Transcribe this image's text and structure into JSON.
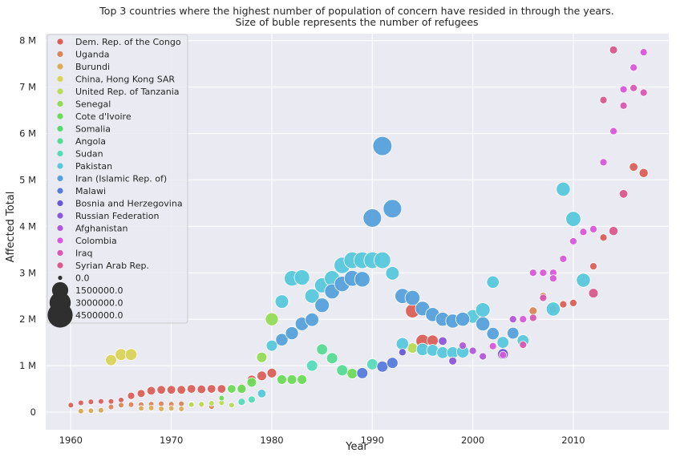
{
  "chart_data": {
    "type": "scatter",
    "title": "Top 3 countries where the highest number of population of concern have resided in through the years.",
    "subtitle": "Size of buble represents the number of refugees",
    "xlabel": "Year",
    "ylabel": "Affected Total",
    "xlim": [
      1957.5,
      2019.5
    ],
    "ylim": [
      -380000,
      8150000
    ],
    "xticks": [
      1960,
      1970,
      1980,
      1990,
      2000,
      2010
    ],
    "yticks": [
      {
        "value": 0,
        "label": "0"
      },
      {
        "value": 1000000,
        "label": "1 M"
      },
      {
        "value": 2000000,
        "label": "2 M"
      },
      {
        "value": 3000000,
        "label": "3 M"
      },
      {
        "value": 4000000,
        "label": "4 M"
      },
      {
        "value": 5000000,
        "label": "5 M"
      },
      {
        "value": 6000000,
        "label": "6 M"
      },
      {
        "value": 7000000,
        "label": "7 M"
      },
      {
        "value": 8000000,
        "label": "8 M"
      }
    ],
    "grid": true,
    "legend_position": "top-left",
    "size_legend": [
      0.0,
      1500000.0,
      3000000.0,
      4500000.0
    ],
    "size_legend_labels": [
      "0.0",
      "1500000.0",
      "3000000.0",
      "4500000.0"
    ],
    "series": [
      {
        "name": "Dem. Rep. of the Congo",
        "color": "#db5f57",
        "points": [
          [
            1960,
            150000,
            20000
          ],
          [
            1961,
            200000,
            20000
          ],
          [
            1962,
            220000,
            20000
          ],
          [
            1963,
            230000,
            20000
          ],
          [
            1964,
            230000,
            20000
          ],
          [
            1965,
            260000,
            20000
          ],
          [
            1966,
            350000,
            100000
          ],
          [
            1967,
            400000,
            150000
          ],
          [
            1968,
            460000,
            200000
          ],
          [
            1969,
            480000,
            200000
          ],
          [
            1970,
            480000,
            200000
          ],
          [
            1971,
            480000,
            200000
          ],
          [
            1972,
            500000,
            200000
          ],
          [
            1973,
            490000,
            200000
          ],
          [
            1974,
            500000,
            200000
          ],
          [
            1975,
            500000,
            200000
          ],
          [
            1977,
            540000,
            100000
          ],
          [
            1978,
            700000,
            250000
          ],
          [
            1979,
            780000,
            300000
          ],
          [
            1980,
            840000,
            300000
          ],
          [
            1994,
            2180000,
            1000000
          ],
          [
            1995,
            1530000,
            850000
          ],
          [
            1996,
            1540000,
            500000
          ],
          [
            2008,
            2220000,
            100000
          ],
          [
            2009,
            2320000,
            100000
          ],
          [
            2010,
            2350000,
            100000
          ],
          [
            2012,
            3140000,
            100000
          ],
          [
            2013,
            3760000,
            100000
          ],
          [
            2016,
            5280000,
            200000
          ],
          [
            2017,
            5150000,
            250000
          ]
        ]
      },
      {
        "name": "Uganda",
        "color": "#db8657",
        "points": [
          [
            1961,
            30000,
            20000
          ],
          [
            1962,
            40000,
            20000
          ],
          [
            1963,
            40000,
            20000
          ],
          [
            1964,
            110000,
            20000
          ],
          [
            1965,
            150000,
            20000
          ],
          [
            1966,
            160000,
            20000
          ],
          [
            1967,
            160000,
            20000
          ],
          [
            1968,
            170000,
            20000
          ],
          [
            1969,
            180000,
            20000
          ],
          [
            1970,
            170000,
            20000
          ],
          [
            1971,
            180000,
            20000
          ],
          [
            1972,
            170000,
            20000
          ],
          [
            1973,
            150000,
            20000
          ],
          [
            1974,
            120000,
            20000
          ],
          [
            1977,
            500000,
            20000
          ],
          [
            2006,
            2180000,
            150000
          ],
          [
            2007,
            2500000,
            100000
          ]
        ]
      },
      {
        "name": "Burundi",
        "color": "#dbad57",
        "points": [
          [
            1961,
            20000,
            20000
          ],
          [
            1962,
            30000,
            20000
          ],
          [
            1963,
            40000,
            20000
          ],
          [
            1967,
            80000,
            20000
          ],
          [
            1968,
            90000,
            20000
          ],
          [
            1969,
            70000,
            20000
          ],
          [
            1970,
            80000,
            20000
          ],
          [
            1971,
            70000,
            20000
          ]
        ]
      },
      {
        "name": "China, Hong Kong SAR",
        "color": "#dbd357",
        "points": [
          [
            1964,
            1120000,
            500000
          ],
          [
            1965,
            1240000,
            600000
          ],
          [
            1966,
            1240000,
            600000
          ]
        ]
      },
      {
        "name": "United Rep. of Tanzania",
        "color": "#b9db57",
        "points": [
          [
            1972,
            160000,
            20000
          ],
          [
            1973,
            170000,
            20000
          ],
          [
            1974,
            190000,
            20000
          ],
          [
            1975,
            200000,
            20000
          ],
          [
            1976,
            150000,
            20000
          ],
          [
            1994,
            1380000,
            400000
          ]
        ]
      },
      {
        "name": "Senegal",
        "color": "#93db57",
        "points": [
          [
            1979,
            1180000,
            400000
          ],
          [
            1980,
            2000000,
            800000
          ]
        ]
      },
      {
        "name": "Cote d'Ivoire",
        "color": "#6cdb57",
        "points": [
          [
            1975,
            300000,
            20000
          ],
          [
            1976,
            500000,
            200000
          ],
          [
            1977,
            500000,
            250000
          ],
          [
            1978,
            640000,
            300000
          ],
          [
            1981,
            700000,
            300000
          ],
          [
            1982,
            700000,
            300000
          ],
          [
            1983,
            700000,
            300000
          ],
          [
            1988,
            830000,
            400000
          ]
        ]
      },
      {
        "name": "Somalia",
        "color": "#57db6c",
        "points": []
      },
      {
        "name": "Angola",
        "color": "#57db93",
        "points": [
          [
            1985,
            1350000,
            500000
          ],
          [
            1986,
            1160000,
            500000
          ],
          [
            1987,
            900000,
            500000
          ]
        ]
      },
      {
        "name": "Sudan",
        "color": "#57dbb9",
        "points": [
          [
            1977,
            220000,
            100000
          ],
          [
            1978,
            270000,
            100000
          ],
          [
            1984,
            1000000,
            500000
          ],
          [
            1990,
            1030000,
            500000
          ]
        ]
      },
      {
        "name": "Pakistan",
        "color": "#57c8db",
        "points": [
          [
            1979,
            400000,
            200000
          ],
          [
            1980,
            1430000,
            500000
          ],
          [
            1981,
            2380000,
            900000
          ],
          [
            1982,
            2880000,
            1300000
          ],
          [
            1983,
            2900000,
            1300000
          ],
          [
            1984,
            2500000,
            1100000
          ],
          [
            1985,
            2730000,
            1200000
          ],
          [
            1986,
            2880000,
            1300000
          ],
          [
            1987,
            3160000,
            1500000
          ],
          [
            1988,
            3270000,
            1600000
          ],
          [
            1989,
            3270000,
            1600000
          ],
          [
            1990,
            3270000,
            1600000
          ],
          [
            1991,
            3270000,
            1600000
          ],
          [
            1992,
            2990000,
            900000
          ],
          [
            1993,
            1470000,
            700000
          ],
          [
            1995,
            1350000,
            700000
          ],
          [
            1996,
            1330000,
            600000
          ],
          [
            1997,
            1280000,
            600000
          ],
          [
            1998,
            1280000,
            600000
          ],
          [
            1999,
            1300000,
            700000
          ],
          [
            2000,
            2060000,
            900000
          ],
          [
            2001,
            2200000,
            1100000
          ],
          [
            2002,
            2800000,
            700000
          ],
          [
            2003,
            1500000,
            600000
          ],
          [
            2005,
            1540000,
            600000
          ],
          [
            2008,
            2220000,
            1000000
          ],
          [
            2009,
            4800000,
            1000000
          ],
          [
            2010,
            4160000,
            1200000
          ],
          [
            2011,
            2840000,
            1000000
          ]
        ]
      },
      {
        "name": "Iran (Islamic Rep. of)",
        "color": "#57a1db",
        "points": [
          [
            1981,
            1560000,
            700000
          ],
          [
            1982,
            1700000,
            800000
          ],
          [
            1983,
            1900000,
            900000
          ],
          [
            1984,
            1990000,
            900000
          ],
          [
            1985,
            2300000,
            1100000
          ],
          [
            1986,
            2600000,
            1200000
          ],
          [
            1987,
            2760000,
            1300000
          ],
          [
            1988,
            2880000,
            1400000
          ],
          [
            1989,
            2860000,
            1300000
          ],
          [
            1990,
            4180000,
            2100000
          ],
          [
            1991,
            5730000,
            2300000
          ],
          [
            1992,
            4380000,
            2100000
          ],
          [
            1993,
            2500000,
            1200000
          ],
          [
            1994,
            2460000,
            1200000
          ],
          [
            1995,
            2230000,
            1100000
          ],
          [
            1996,
            2100000,
            1000000
          ],
          [
            1997,
            2000000,
            1000000
          ],
          [
            1998,
            1960000,
            1000000
          ],
          [
            1999,
            2000000,
            1000000
          ],
          [
            2001,
            1900000,
            1000000
          ],
          [
            2002,
            1690000,
            700000
          ],
          [
            2004,
            1700000,
            600000
          ]
        ]
      },
      {
        "name": "Malawi",
        "color": "#577bdb",
        "points": [
          [
            1989,
            840000,
            500000
          ],
          [
            1991,
            980000,
            500000
          ],
          [
            1992,
            1060000,
            500000
          ]
        ]
      },
      {
        "name": "Bosnia and Herzegovina",
        "color": "#6657db",
        "points": [
          [
            1993,
            1290000,
            100000
          ],
          [
            2003,
            1250000,
            450000
          ]
        ]
      },
      {
        "name": "Russian Federation",
        "color": "#8c57db",
        "points": [
          [
            1997,
            1530000,
            200000
          ],
          [
            1998,
            1100000,
            150000
          ]
        ]
      },
      {
        "name": "Afghanistan",
        "color": "#b257db",
        "points": [
          [
            1999,
            1430000,
            100000
          ],
          [
            2000,
            1320000,
            100000
          ],
          [
            2001,
            1200000,
            100000
          ],
          [
            2004,
            2000000,
            100000
          ]
        ]
      },
      {
        "name": "Colombia",
        "color": "#d857db",
        "points": [
          [
            2002,
            1420000,
            100000
          ],
          [
            2003,
            1230000,
            100000
          ],
          [
            2005,
            2000000,
            100000
          ],
          [
            2006,
            3000000,
            100000
          ],
          [
            2007,
            3000000,
            100000
          ],
          [
            2008,
            3000000,
            100000
          ],
          [
            2008,
            2880000,
            100000
          ],
          [
            2009,
            3300000,
            100000
          ],
          [
            2010,
            3680000,
            100000
          ],
          [
            2011,
            3880000,
            100000
          ],
          [
            2012,
            3940000,
            100000
          ],
          [
            2013,
            5380000,
            100000
          ],
          [
            2014,
            6050000,
            100000
          ],
          [
            2015,
            6950000,
            100000
          ],
          [
            2016,
            7420000,
            100000
          ],
          [
            2017,
            7750000,
            100000
          ]
        ]
      },
      {
        "name": "Iraq",
        "color": "#db57b2",
        "points": [
          [
            2005,
            1450000,
            100000
          ],
          [
            2006,
            2030000,
            100000
          ],
          [
            2007,
            2460000,
            100000
          ],
          [
            2015,
            6600000,
            100000
          ],
          [
            2016,
            6980000,
            100000
          ],
          [
            2017,
            6880000,
            100000
          ]
        ]
      },
      {
        "name": "Syrian Arab Rep.",
        "color": "#db578c",
        "points": [
          [
            2012,
            2560000,
            300000
          ],
          [
            2013,
            6720000,
            100000
          ],
          [
            2014,
            3900000,
            250000
          ],
          [
            2014,
            7800000,
            150000
          ],
          [
            2015,
            4700000,
            200000
          ]
        ]
      }
    ]
  }
}
